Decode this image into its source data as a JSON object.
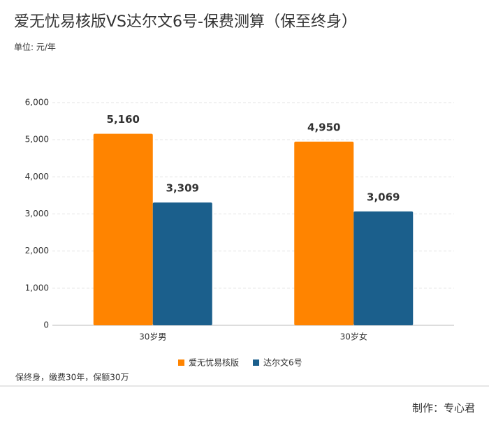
{
  "chart_data": {
    "type": "bar",
    "title": "爱无忧易核版VS达尔文6号-保费测算（保至终身）",
    "subtitle": "单位: 元/年",
    "categories": [
      "30岁男",
      "30岁女"
    ],
    "series": [
      {
        "name": "爱无忧易核版",
        "color": "#ff8400",
        "values": [
          5160,
          4950
        ],
        "value_labels": [
          "5,160",
          "4,950"
        ]
      },
      {
        "name": "达尔文6号",
        "color": "#1b5f8c",
        "values": [
          3309,
          3069
        ],
        "value_labels": [
          "3,309",
          "3,069"
        ]
      }
    ],
    "ylim": [
      0,
      6000
    ],
    "yticks": [
      0,
      {
        "value": 1000,
        "label": "1,000"
      },
      {
        "value": 2000,
        "label": "2,000"
      },
      {
        "value": 3000,
        "label": "3,000"
      },
      {
        "value": 4000,
        "label": "4,000"
      },
      {
        "value": 5000,
        "label": "5,000"
      },
      {
        "value": 6000,
        "label": "6,000"
      }
    ],
    "grid": true,
    "legend": "bottom",
    "footnote": "保终身，缴费30年，保额30万",
    "credit": "制作：专心君"
  }
}
